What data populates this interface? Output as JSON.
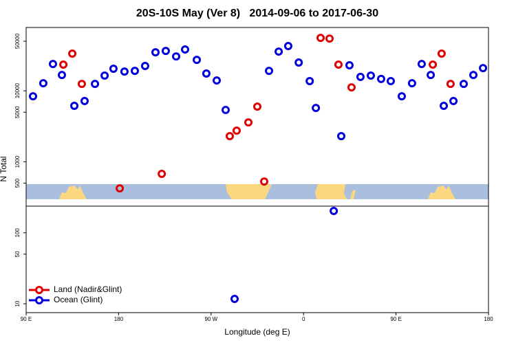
{
  "chart_data": {
    "type": "scatter",
    "title": "20S-10S May (Ver 8)   2014-09-06 to 2017-06-30",
    "x_label": "Longitude (deg E)",
    "y_label": "N Total",
    "xlim": [
      90,
      540
    ],
    "xticks": [
      {
        "value": 90,
        "label": "90 E"
      },
      180,
      {
        "value": 270,
        "label": "90 W"
      },
      {
        "value": 360,
        "label": "0"
      },
      {
        "value": 450,
        "label": "90 E"
      },
      {
        "value": 540,
        "label": "180"
      }
    ],
    "ylim": [
      7.5,
      78000
    ],
    "yticks": [
      10,
      50,
      100,
      500,
      1000,
      5000,
      10000,
      50000
    ],
    "log_y": true,
    "legend": "lower left",
    "series": [
      {
        "name": "Land (Nadir&Glint)",
        "color": "#e00000",
        "x": [
          126.2,
          134.9,
          144.2,
          181.1,
          222.0,
          288.2,
          294.9,
          306.3,
          315.0,
          321.7,
          376.6,
          385.3,
          394.0,
          406.7,
          485.8,
          494.4,
          503.1
        ],
        "y": [
          23400,
          33400,
          12500,
          423,
          676,
          2300,
          2750,
          3590,
          6000,
          528,
          55700,
          54500,
          23400,
          11200,
          23400,
          33400,
          12500
        ]
      },
      {
        "name": "Ocean (Glint)",
        "color": "#0000dd",
        "x": [
          96.7,
          106.7,
          116.1,
          124.8,
          136.9,
          146.9,
          157.0,
          166.4,
          175.0,
          185.7,
          195.8,
          205.8,
          215.9,
          225.9,
          236.0,
          244.7,
          256.1,
          265.4,
          275.5,
          284.2,
          292.9,
          326.4,
          335.8,
          345.1,
          355.3,
          366.0,
          372.0,
          389.4,
          396.7,
          404.7,
          415.4,
          425.5,
          435.5,
          444.9,
          455.6,
          465.6,
          475.0,
          483.8,
          496.5,
          505.9,
          515.9,
          525.3,
          534.7
        ],
        "y": [
          8380,
          12800,
          23900,
          16700,
          6140,
          7180,
          12500,
          16400,
          20500,
          18700,
          19100,
          22400,
          34900,
          36500,
          30500,
          38200,
          27300,
          17500,
          14000,
          5370,
          11.7,
          19100,
          35700,
          42700,
          25000,
          13700,
          5740,
          203,
          2300,
          22900,
          15700,
          16400,
          14700,
          13700,
          8380,
          12800,
          23900,
          16700,
          6140,
          7180,
          12500,
          16700,
          20900
        ]
      }
    ]
  }
}
